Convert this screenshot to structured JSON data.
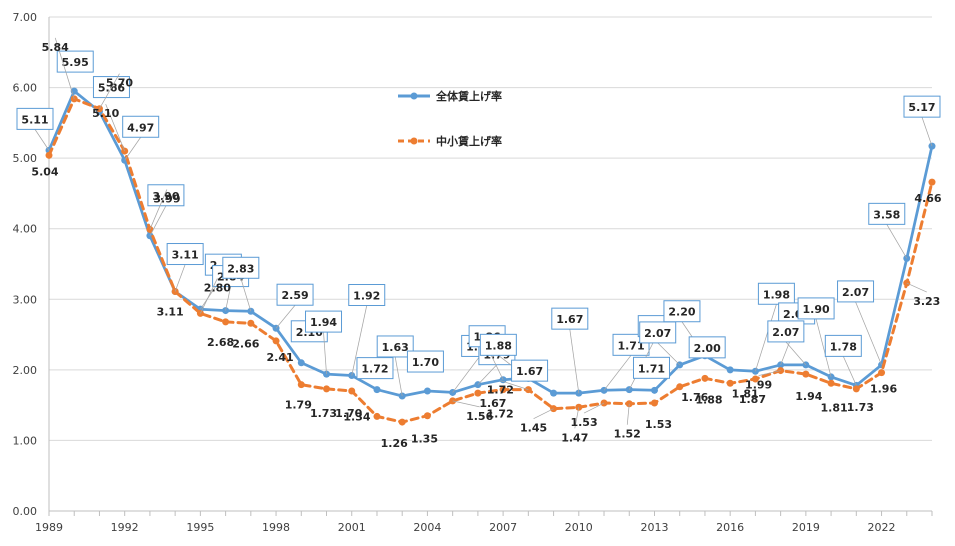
{
  "chart_data": {
    "type": "line",
    "x": [
      1989,
      1990,
      1991,
      1992,
      1993,
      1994,
      1995,
      1996,
      1997,
      1998,
      1999,
      2000,
      2001,
      2002,
      2003,
      2004,
      2005,
      2006,
      2007,
      2008,
      2009,
      2010,
      2011,
      2012,
      2013,
      2014,
      2015,
      2016,
      2017,
      2018,
      2019,
      2020,
      2021,
      2022,
      2023,
      2024
    ],
    "x_tick_labels": [
      "1989",
      "1992",
      "1995",
      "1998",
      "2001",
      "2004",
      "2007",
      "2010",
      "2013",
      "2016",
      "2019",
      "2022"
    ],
    "y_tick_labels": [
      "0.00",
      "1.00",
      "2.00",
      "3.00",
      "4.00",
      "5.00",
      "6.00",
      "7.00"
    ],
    "ylim": [
      0,
      7
    ],
    "grid": "horizontal",
    "legend_position": "top-center",
    "series": [
      {
        "name": "全体賃上げ率",
        "color": "#5B9BD5",
        "style": "solid",
        "values": [
          5.11,
          5.95,
          5.66,
          4.97,
          3.9,
          3.11,
          2.86,
          2.84,
          2.83,
          2.59,
          2.1,
          1.94,
          1.92,
          1.72,
          1.63,
          1.7,
          1.68,
          1.79,
          1.86,
          1.88,
          1.67,
          1.67,
          1.71,
          1.72,
          1.71,
          2.07,
          2.2,
          2.0,
          1.98,
          2.07,
          2.07,
          1.9,
          1.78,
          2.07,
          3.58,
          5.17
        ],
        "labels": [
          "5.11",
          "5.95",
          "5.66",
          "4.97",
          "3.90",
          "3.11",
          "2.86",
          "2.84",
          "2.83",
          "2.59",
          "2.10",
          "1.94",
          "1.92",
          "1.72",
          "1.63",
          "1.70",
          "1.68",
          "1.79",
          "1.86",
          "1.88",
          "1.67",
          "1.67",
          "1.71",
          "1.72",
          "1.71",
          "2.07",
          "2.20",
          "2.00",
          "1.98",
          "2.07",
          "2.07",
          "1.90",
          "1.78",
          "2.07",
          "3.58",
          "5.17"
        ]
      },
      {
        "name": "中小賃上げ率",
        "color": "#ED7D31",
        "style": "dashed",
        "values": [
          5.04,
          5.84,
          5.7,
          5.1,
          3.99,
          3.11,
          2.8,
          2.68,
          2.66,
          2.41,
          1.79,
          1.73,
          1.7,
          1.34,
          1.26,
          1.35,
          1.56,
          1.67,
          1.72,
          1.72,
          1.45,
          1.47,
          1.53,
          1.52,
          1.53,
          1.76,
          1.88,
          1.81,
          1.87,
          1.99,
          1.94,
          1.81,
          1.73,
          1.96,
          3.23,
          4.66
        ],
        "labels": [
          "5.04",
          "5.84",
          "5.70",
          "5.10",
          "3.99",
          "3.11",
          "2.80",
          "2.68",
          "2.66",
          "2.41",
          "1.79",
          "1.73",
          "1.70",
          "1.34",
          "1.26",
          "1.35",
          "1.56",
          "1.67",
          "1.72",
          "1.72",
          "1.45",
          "1.47",
          "1.53",
          "1.52",
          "1.53",
          "1.76",
          "1.88",
          "1.81",
          "1.87",
          "1.99",
          "1.94",
          "1.81",
          "1.73",
          "1.96",
          "3.23",
          "4.66"
        ]
      }
    ]
  }
}
